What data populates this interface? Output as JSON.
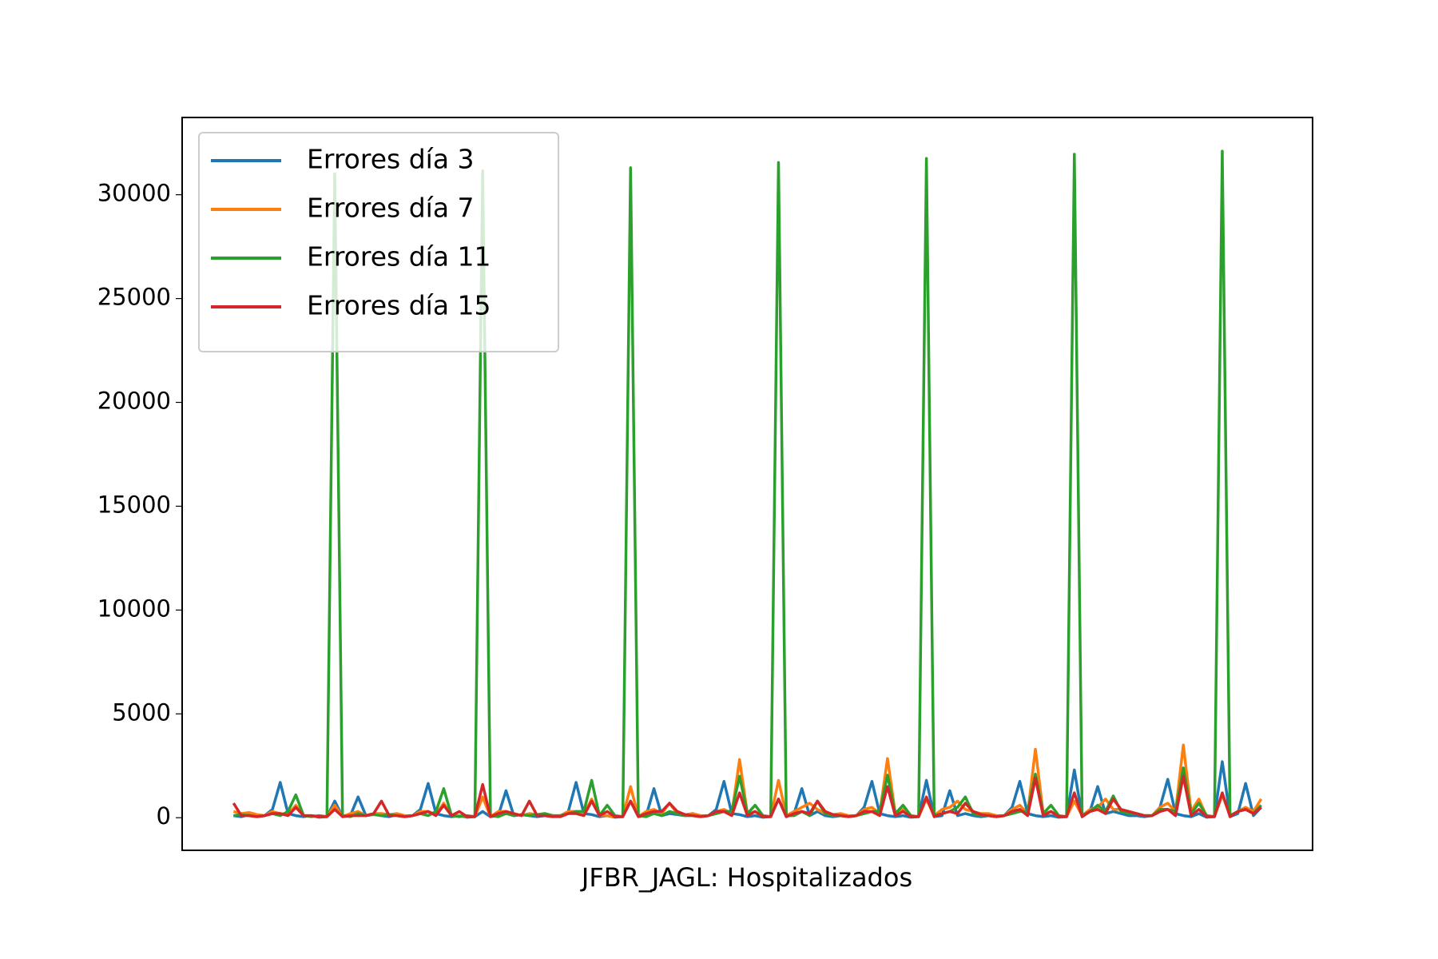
{
  "chart_data": {
    "type": "line",
    "xlabel": "JFBR_JAGL: Hospitalizados",
    "categories": [
      null,
      null,
      null,
      null,
      null,
      null,
      null,
      null,
      null,
      null,
      null,
      null,
      null,
      null,
      null,
      null,
      null,
      null,
      null,
      null,
      null,
      null,
      null,
      null,
      null,
      null,
      null,
      null,
      null,
      null,
      null,
      null,
      null,
      null,
      null,
      null,
      null,
      null,
      null,
      null,
      null,
      null,
      null,
      null,
      null,
      null,
      null,
      null,
      null,
      null,
      null,
      null,
      null,
      null,
      null,
      null,
      null,
      null,
      null,
      null,
      null,
      null,
      null,
      null,
      null,
      null,
      null,
      null,
      null,
      null,
      null,
      null,
      null,
      null,
      null,
      null,
      null,
      null,
      null,
      null,
      null,
      null,
      null,
      null,
      null,
      null,
      null,
      null,
      null,
      null,
      null,
      null,
      null,
      null,
      null,
      null,
      null,
      null,
      null,
      null,
      null,
      null,
      null,
      null,
      null,
      null,
      null,
      null,
      null,
      null,
      null,
      null,
      null,
      null,
      null,
      null,
      null,
      null,
      null,
      null,
      null,
      null,
      null,
      null,
      null,
      null,
      null,
      null,
      null,
      null,
      null,
      null,
      null
    ],
    "series": [
      {
        "name": "Errores día 3",
        "color": "#1f77b4",
        "values": [
          100,
          50,
          150,
          50,
          100,
          400,
          1700,
          200,
          100,
          50,
          100,
          20,
          50,
          800,
          50,
          100,
          1000,
          100,
          200,
          100,
          50,
          150,
          50,
          100,
          400,
          1650,
          200,
          100,
          50,
          100,
          20,
          50,
          300,
          50,
          100,
          1300,
          100,
          150,
          100,
          50,
          100,
          50,
          100,
          300,
          1700,
          200,
          150,
          50,
          100,
          20,
          50,
          800,
          50,
          100,
          1400,
          100,
          200,
          150,
          100,
          200,
          50,
          100,
          400,
          1750,
          200,
          150,
          50,
          100,
          20,
          50,
          900,
          50,
          200,
          1400,
          100,
          300,
          100,
          50,
          100,
          50,
          100,
          500,
          1750,
          200,
          100,
          50,
          100,
          20,
          50,
          1800,
          50,
          100,
          1300,
          100,
          200,
          100,
          50,
          100,
          50,
          100,
          500,
          1750,
          200,
          100,
          50,
          100,
          20,
          50,
          2300,
          50,
          300,
          1500,
          200,
          300,
          200,
          100,
          100,
          50,
          100,
          500,
          1850,
          200,
          100,
          50,
          200,
          20,
          50,
          2700,
          50,
          200,
          1650,
          100,
          500
        ]
      },
      {
        "name": "Errores día 7",
        "color": "#ff7f0e",
        "values": [
          300,
          200,
          250,
          150,
          100,
          300,
          200,
          150,
          600,
          100,
          100,
          50,
          50,
          600,
          50,
          200,
          300,
          100,
          200,
          200,
          150,
          200,
          100,
          100,
          300,
          300,
          150,
          700,
          100,
          100,
          50,
          50,
          1000,
          50,
          300,
          300,
          200,
          100,
          200,
          150,
          200,
          100,
          100,
          300,
          300,
          150,
          900,
          100,
          100,
          50,
          50,
          1500,
          50,
          300,
          400,
          200,
          700,
          200,
          150,
          200,
          100,
          100,
          300,
          400,
          200,
          2800,
          200,
          300,
          50,
          50,
          1800,
          100,
          300,
          500,
          700,
          400,
          200,
          150,
          200,
          100,
          100,
          400,
          500,
          200,
          2850,
          200,
          400,
          50,
          50,
          900,
          100,
          400,
          500,
          800,
          400,
          300,
          200,
          200,
          100,
          100,
          400,
          600,
          200,
          3300,
          200,
          300,
          50,
          50,
          800,
          100,
          400,
          500,
          900,
          400,
          400,
          300,
          200,
          100,
          100,
          500,
          700,
          300,
          3500,
          300,
          900,
          50,
          50,
          1100,
          100,
          300,
          500,
          300,
          900
        ]
      },
      {
        "name": "Errores día 11",
        "color": "#2ca02c",
        "values": [
          100,
          150,
          100,
          50,
          100,
          200,
          100,
          300,
          1100,
          100,
          50,
          100,
          50,
          31000,
          100,
          50,
          200,
          100,
          150,
          100,
          150,
          100,
          50,
          100,
          200,
          100,
          300,
          1400,
          100,
          50,
          100,
          50,
          31150,
          100,
          50,
          200,
          100,
          150,
          100,
          150,
          200,
          100,
          100,
          200,
          300,
          300,
          1800,
          100,
          600,
          100,
          50,
          31300,
          100,
          50,
          200,
          100,
          300,
          200,
          100,
          100,
          50,
          100,
          200,
          300,
          300,
          2000,
          200,
          600,
          100,
          50,
          31550,
          100,
          100,
          300,
          100,
          800,
          200,
          100,
          100,
          50,
          100,
          200,
          300,
          300,
          2050,
          200,
          600,
          100,
          50,
          31750,
          100,
          200,
          300,
          500,
          1000,
          200,
          100,
          100,
          50,
          100,
          200,
          300,
          300,
          2100,
          200,
          600,
          100,
          50,
          31950,
          100,
          300,
          600,
          300,
          1050,
          300,
          200,
          200,
          100,
          100,
          400,
          400,
          300,
          2400,
          200,
          700,
          100,
          50,
          32100,
          100,
          300,
          400,
          200,
          600
        ]
      },
      {
        "name": "Errores día 15",
        "color": "#d62728",
        "values": [
          700,
          100,
          100,
          50,
          100,
          200,
          200,
          100,
          500,
          100,
          100,
          50,
          50,
          400,
          50,
          100,
          100,
          100,
          200,
          800,
          100,
          100,
          50,
          100,
          200,
          300,
          100,
          600,
          100,
          300,
          50,
          50,
          1600,
          50,
          200,
          300,
          200,
          100,
          800,
          100,
          100,
          50,
          50,
          200,
          200,
          100,
          800,
          100,
          300,
          50,
          50,
          800,
          50,
          200,
          300,
          300,
          700,
          300,
          150,
          100,
          50,
          100,
          300,
          300,
          100,
          1200,
          100,
          300,
          50,
          50,
          900,
          50,
          200,
          300,
          200,
          800,
          300,
          150,
          100,
          50,
          100,
          300,
          300,
          100,
          1500,
          100,
          300,
          50,
          50,
          1000,
          50,
          200,
          300,
          200,
          700,
          300,
          150,
          100,
          50,
          100,
          300,
          400,
          100,
          1900,
          100,
          300,
          50,
          50,
          1200,
          50,
          300,
          400,
          200,
          900,
          400,
          300,
          200,
          100,
          100,
          300,
          400,
          100,
          2000,
          100,
          400,
          50,
          50,
          1200,
          50,
          300,
          400,
          200,
          500
        ]
      }
    ],
    "ylim": [
      -1570,
      33720
    ],
    "yticks": [
      0,
      5000,
      10000,
      15000,
      20000,
      25000,
      30000
    ],
    "legend": "upper left"
  }
}
